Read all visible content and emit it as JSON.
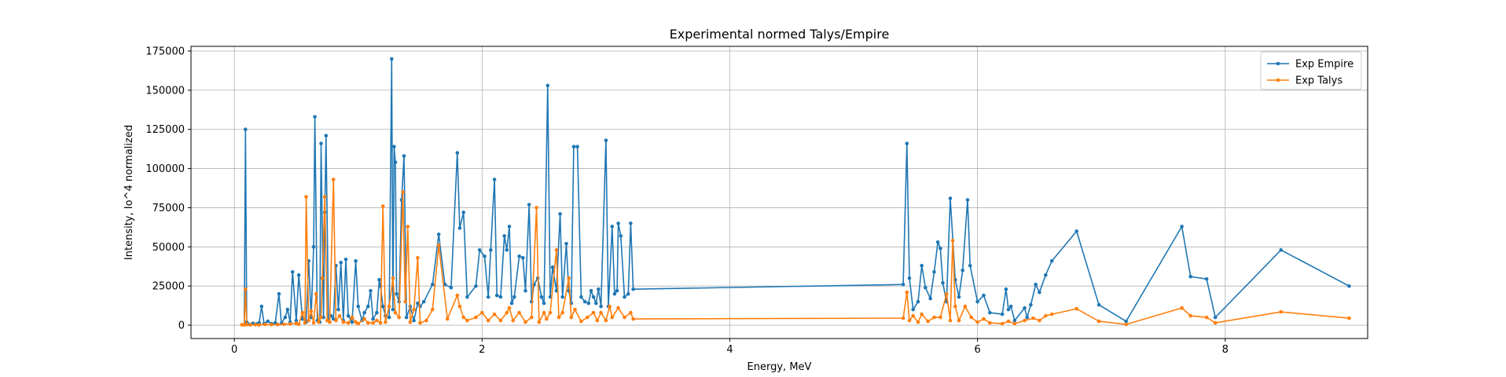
{
  "chart_data": {
    "type": "line",
    "title": "Experimental normed Talys/Empire",
    "xlabel": "Energy, MeV",
    "ylabel": "Intensity, Io^4 normalized",
    "xlim": [
      -0.35,
      9.15
    ],
    "ylim": [
      -8500,
      178000
    ],
    "xticks": [
      0,
      2,
      4,
      6,
      8
    ],
    "yticks": [
      0,
      25000,
      50000,
      75000,
      100000,
      125000,
      150000,
      175000
    ],
    "grid": true,
    "legend_position": "top-right",
    "series": [
      {
        "name": "Exp Empire",
        "color": "#1f77b4",
        "points": [
          [
            0.08,
            300
          ],
          [
            0.09,
            125000
          ],
          [
            0.1,
            2000
          ],
          [
            0.12,
            500
          ],
          [
            0.15,
            1200
          ],
          [
            0.18,
            800
          ],
          [
            0.2,
            1500
          ],
          [
            0.22,
            12000
          ],
          [
            0.24,
            1000
          ],
          [
            0.27,
            2500
          ],
          [
            0.3,
            1000
          ],
          [
            0.33,
            1500
          ],
          [
            0.36,
            20000
          ],
          [
            0.38,
            1200
          ],
          [
            0.41,
            5000
          ],
          [
            0.43,
            10000
          ],
          [
            0.45,
            2000
          ],
          [
            0.47,
            34000
          ],
          [
            0.5,
            3000
          ],
          [
            0.52,
            32000
          ],
          [
            0.55,
            4000
          ],
          [
            0.58,
            2000
          ],
          [
            0.6,
            41000
          ],
          [
            0.62,
            5000
          ],
          [
            0.64,
            50000
          ],
          [
            0.65,
            133000
          ],
          [
            0.67,
            3000
          ],
          [
            0.69,
            2000
          ],
          [
            0.7,
            116000
          ],
          [
            0.72,
            5000
          ],
          [
            0.73,
            72000
          ],
          [
            0.74,
            121000
          ],
          [
            0.76,
            3000
          ],
          [
            0.78,
            6000
          ],
          [
            0.8,
            4000
          ],
          [
            0.82,
            38000
          ],
          [
            0.84,
            10000
          ],
          [
            0.86,
            40000
          ],
          [
            0.88,
            3000
          ],
          [
            0.9,
            42000
          ],
          [
            0.92,
            6000
          ],
          [
            0.95,
            2000
          ],
          [
            0.98,
            41000
          ],
          [
            1.0,
            12000
          ],
          [
            1.03,
            3000
          ],
          [
            1.05,
            8000
          ],
          [
            1.08,
            12000
          ],
          [
            1.1,
            22000
          ],
          [
            1.12,
            4000
          ],
          [
            1.15,
            8000
          ],
          [
            1.17,
            29000
          ],
          [
            1.18,
            25000
          ],
          [
            1.2,
            12000
          ],
          [
            1.22,
            6000
          ],
          [
            1.25,
            5000
          ],
          [
            1.27,
            170000
          ],
          [
            1.28,
            10000
          ],
          [
            1.29,
            114000
          ],
          [
            1.3,
            104000
          ],
          [
            1.31,
            20000
          ],
          [
            1.33,
            15000
          ],
          [
            1.35,
            80000
          ],
          [
            1.37,
            108000
          ],
          [
            1.39,
            5000
          ],
          [
            1.42,
            12000
          ],
          [
            1.45,
            3000
          ],
          [
            1.48,
            14000
          ],
          [
            1.5,
            12000
          ],
          [
            1.53,
            15000
          ],
          [
            1.6,
            26000
          ],
          [
            1.65,
            58000
          ],
          [
            1.7,
            26000
          ],
          [
            1.75,
            24000
          ],
          [
            1.8,
            110000
          ],
          [
            1.82,
            62000
          ],
          [
            1.85,
            72000
          ],
          [
            1.88,
            18000
          ],
          [
            1.95,
            25000
          ],
          [
            1.98,
            48000
          ],
          [
            2.02,
            44000
          ],
          [
            2.05,
            18000
          ],
          [
            2.07,
            48000
          ],
          [
            2.1,
            93000
          ],
          [
            2.12,
            19000
          ],
          [
            2.15,
            18000
          ],
          [
            2.18,
            57000
          ],
          [
            2.2,
            48000
          ],
          [
            2.22,
            63000
          ],
          [
            2.24,
            14000
          ],
          [
            2.26,
            18000
          ],
          [
            2.3,
            44000
          ],
          [
            2.33,
            43000
          ],
          [
            2.35,
            22000
          ],
          [
            2.38,
            77000
          ],
          [
            2.4,
            15000
          ],
          [
            2.42,
            26000
          ],
          [
            2.45,
            30000
          ],
          [
            2.48,
            18000
          ],
          [
            2.5,
            14000
          ],
          [
            2.53,
            153000
          ],
          [
            2.55,
            18000
          ],
          [
            2.57,
            37000
          ],
          [
            2.6,
            22000
          ],
          [
            2.63,
            71000
          ],
          [
            2.65,
            18000
          ],
          [
            2.68,
            52000
          ],
          [
            2.7,
            22000
          ],
          [
            2.72,
            14000
          ],
          [
            2.74,
            114000
          ],
          [
            2.77,
            114000
          ],
          [
            2.8,
            18000
          ],
          [
            2.83,
            15000
          ],
          [
            2.86,
            14000
          ],
          [
            2.88,
            22000
          ],
          [
            2.9,
            18000
          ],
          [
            2.92,
            14000
          ],
          [
            2.94,
            23000
          ],
          [
            2.96,
            12000
          ],
          [
            3.0,
            118000
          ],
          [
            3.02,
            12000
          ],
          [
            3.05,
            63000
          ],
          [
            3.07,
            20000
          ],
          [
            3.09,
            22000
          ],
          [
            3.1,
            65000
          ],
          [
            3.12,
            57000
          ],
          [
            3.15,
            18000
          ],
          [
            3.18,
            20000
          ],
          [
            3.2,
            65000
          ],
          [
            3.22,
            23000
          ],
          [
            5.4,
            26000
          ],
          [
            5.43,
            116000
          ],
          [
            5.45,
            30000
          ],
          [
            5.48,
            10000
          ],
          [
            5.52,
            15000
          ],
          [
            5.55,
            38000
          ],
          [
            5.58,
            24000
          ],
          [
            5.62,
            17000
          ],
          [
            5.65,
            34000
          ],
          [
            5.68,
            53000
          ],
          [
            5.7,
            49000
          ],
          [
            5.72,
            27000
          ],
          [
            5.75,
            15000
          ],
          [
            5.78,
            81000
          ],
          [
            5.82,
            29000
          ],
          [
            5.85,
            18000
          ],
          [
            5.88,
            35000
          ],
          [
            5.92,
            80000
          ],
          [
            5.94,
            38000
          ],
          [
            6.0,
            15000
          ],
          [
            6.05,
            19000
          ],
          [
            6.1,
            8000
          ],
          [
            6.2,
            7000
          ],
          [
            6.23,
            23000
          ],
          [
            6.25,
            10000
          ],
          [
            6.27,
            12000
          ],
          [
            6.3,
            3000
          ],
          [
            6.38,
            11000
          ],
          [
            6.4,
            5000
          ],
          [
            6.43,
            13000
          ],
          [
            6.47,
            26000
          ],
          [
            6.5,
            21000
          ],
          [
            6.55,
            32000
          ],
          [
            6.6,
            41000
          ],
          [
            6.8,
            60000
          ],
          [
            6.98,
            13000
          ],
          [
            7.2,
            2500
          ],
          [
            7.65,
            63000
          ],
          [
            7.72,
            31000
          ],
          [
            7.85,
            29500
          ],
          [
            7.92,
            5000
          ],
          [
            8.45,
            48000
          ],
          [
            9.0,
            25000
          ]
        ]
      },
      {
        "name": "Exp Talys",
        "color": "#ff7f0e",
        "points": [
          [
            0.06,
            300
          ],
          [
            0.08,
            200
          ],
          [
            0.09,
            23000
          ],
          [
            0.1,
            400
          ],
          [
            0.13,
            200
          ],
          [
            0.17,
            300
          ],
          [
            0.2,
            200
          ],
          [
            0.25,
            500
          ],
          [
            0.3,
            300
          ],
          [
            0.35,
            400
          ],
          [
            0.4,
            600
          ],
          [
            0.45,
            800
          ],
          [
            0.5,
            1200
          ],
          [
            0.52,
            600
          ],
          [
            0.55,
            8000
          ],
          [
            0.57,
            1500
          ],
          [
            0.58,
            82000
          ],
          [
            0.6,
            3000
          ],
          [
            0.62,
            9000
          ],
          [
            0.64,
            1500
          ],
          [
            0.66,
            20000
          ],
          [
            0.68,
            2000
          ],
          [
            0.7,
            5000
          ],
          [
            0.71,
            30000
          ],
          [
            0.73,
            82000
          ],
          [
            0.75,
            3000
          ],
          [
            0.77,
            2000
          ],
          [
            0.8,
            93000
          ],
          [
            0.82,
            3000
          ],
          [
            0.85,
            6000
          ],
          [
            0.88,
            2000
          ],
          [
            0.92,
            1500
          ],
          [
            0.95,
            5000
          ],
          [
            0.98,
            2000
          ],
          [
            1.0,
            1000
          ],
          [
            1.05,
            4000
          ],
          [
            1.08,
            1500
          ],
          [
            1.12,
            1500
          ],
          [
            1.15,
            3000
          ],
          [
            1.18,
            1500
          ],
          [
            1.2,
            76000
          ],
          [
            1.22,
            2000
          ],
          [
            1.25,
            12000
          ],
          [
            1.28,
            30000
          ],
          [
            1.3,
            8000
          ],
          [
            1.33,
            5000
          ],
          [
            1.36,
            85000
          ],
          [
            1.38,
            15000
          ],
          [
            1.4,
            63000
          ],
          [
            1.42,
            2000
          ],
          [
            1.45,
            10000
          ],
          [
            1.48,
            43000
          ],
          [
            1.5,
            1500
          ],
          [
            1.55,
            3000
          ],
          [
            1.6,
            10000
          ],
          [
            1.65,
            51000
          ],
          [
            1.72,
            4000
          ],
          [
            1.8,
            19000
          ],
          [
            1.82,
            12000
          ],
          [
            1.85,
            5000
          ],
          [
            1.88,
            3000
          ],
          [
            1.95,
            5000
          ],
          [
            2.0,
            8000
          ],
          [
            2.05,
            3000
          ],
          [
            2.1,
            7000
          ],
          [
            2.15,
            3000
          ],
          [
            2.2,
            8000
          ],
          [
            2.22,
            11000
          ],
          [
            2.25,
            3000
          ],
          [
            2.3,
            8000
          ],
          [
            2.35,
            2000
          ],
          [
            2.4,
            5000
          ],
          [
            2.44,
            75000
          ],
          [
            2.46,
            2000
          ],
          [
            2.5,
            8000
          ],
          [
            2.52,
            4000
          ],
          [
            2.55,
            8000
          ],
          [
            2.6,
            48000
          ],
          [
            2.62,
            5000
          ],
          [
            2.65,
            8000
          ],
          [
            2.7,
            30000
          ],
          [
            2.72,
            5000
          ],
          [
            2.75,
            10000
          ],
          [
            2.8,
            2500
          ],
          [
            2.85,
            5000
          ],
          [
            2.9,
            8000
          ],
          [
            2.93,
            3000
          ],
          [
            2.96,
            8000
          ],
          [
            3.0,
            3000
          ],
          [
            3.03,
            12000
          ],
          [
            3.05,
            5000
          ],
          [
            3.1,
            11000
          ],
          [
            3.15,
            5000
          ],
          [
            3.2,
            8000
          ],
          [
            3.22,
            4000
          ],
          [
            5.4,
            4500
          ],
          [
            5.43,
            21000
          ],
          [
            5.45,
            3000
          ],
          [
            5.48,
            6000
          ],
          [
            5.52,
            2000
          ],
          [
            5.55,
            7000
          ],
          [
            5.6,
            2500
          ],
          [
            5.65,
            5000
          ],
          [
            5.7,
            5000
          ],
          [
            5.75,
            20000
          ],
          [
            5.78,
            3000
          ],
          [
            5.8,
            54000
          ],
          [
            5.82,
            12000
          ],
          [
            5.85,
            3000
          ],
          [
            5.9,
            12000
          ],
          [
            5.95,
            5000
          ],
          [
            6.0,
            2000
          ],
          [
            6.05,
            4000
          ],
          [
            6.1,
            1500
          ],
          [
            6.2,
            1000
          ],
          [
            6.25,
            2500
          ],
          [
            6.3,
            1000
          ],
          [
            6.38,
            3000
          ],
          [
            6.45,
            4500
          ],
          [
            6.5,
            3000
          ],
          [
            6.55,
            6000
          ],
          [
            6.6,
            7000
          ],
          [
            6.8,
            10500
          ],
          [
            6.98,
            2500
          ],
          [
            7.2,
            500
          ],
          [
            7.65,
            11000
          ],
          [
            7.72,
            6000
          ],
          [
            7.85,
            5000
          ],
          [
            7.92,
            1500
          ],
          [
            8.45,
            8500
          ],
          [
            9.0,
            4500
          ]
        ]
      }
    ]
  }
}
